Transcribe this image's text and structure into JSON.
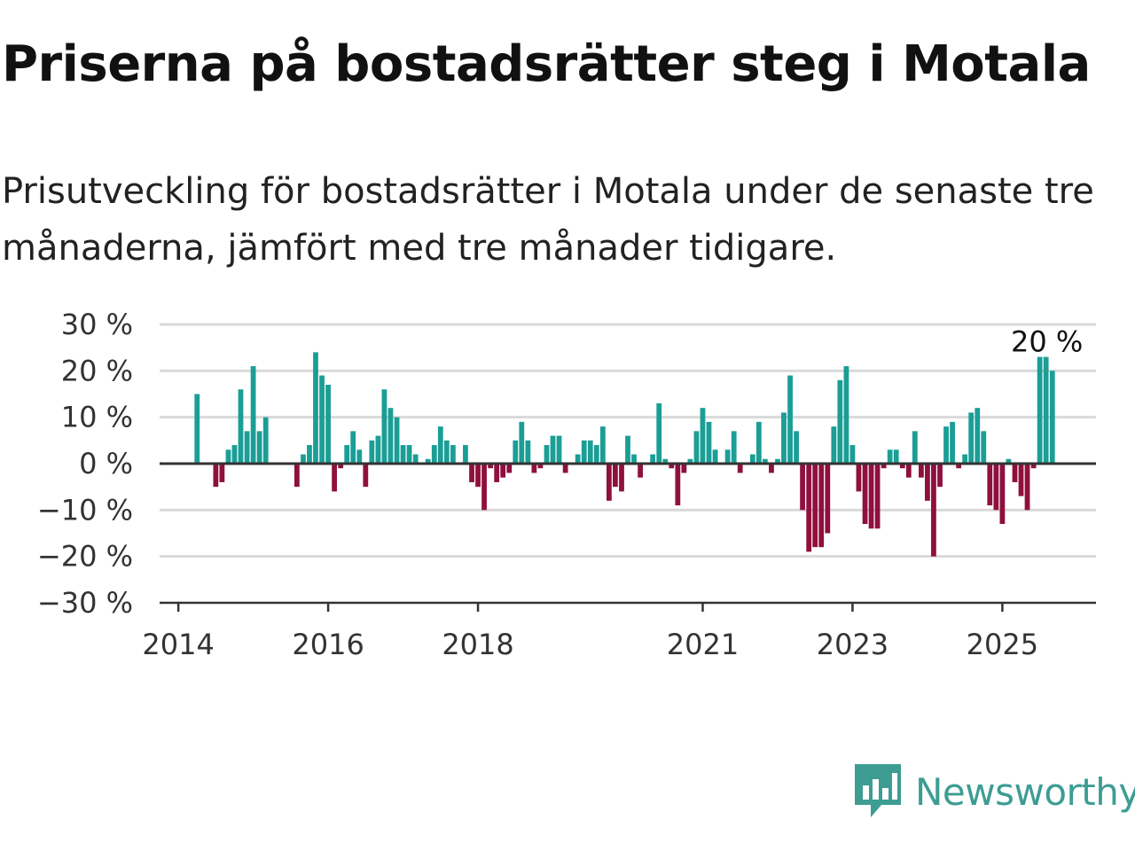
{
  "title": "Priserna på bostadsrätter steg i Motala",
  "subtitle": "Prisutveckling för bostadsrätter i Motala under de senaste tre månaderna, jämfört med tre månader tidigare.",
  "colors": {
    "positive": "#1a9e96",
    "negative": "#8f0f3d",
    "grid": "#d9d9d9",
    "zero_line": "#333333",
    "brand": "#3d9d93"
  },
  "logo": {
    "text": "Newsworthy",
    "icon": "newsworthy-chart-icon"
  },
  "chart_data": {
    "type": "bar",
    "title": "",
    "xlabel": "",
    "ylabel": "",
    "ylim": [
      -30,
      30
    ],
    "y_ticks": [
      30,
      20,
      10,
      0,
      -10,
      -20,
      -30
    ],
    "y_tick_labels": [
      "30 %",
      "20 %",
      "10 %",
      "0 %",
      "−10 %",
      "−20 %",
      "−30 %"
    ],
    "x_ticks": [
      "2014",
      "2016",
      "2018",
      "2021",
      "2023",
      "2025"
    ],
    "x_tick_positions": [
      2014.0,
      2016.0,
      2018.0,
      2021.0,
      2023.0,
      2025.0
    ],
    "x_range": [
      2013.75,
      2026.25
    ],
    "grid": true,
    "annotation": {
      "text": "20 %",
      "x": 2025.5
    },
    "points": [
      {
        "x": 2014.25,
        "y": 15
      },
      {
        "x": 2014.5,
        "y": -5
      },
      {
        "x": 2014.583,
        "y": -4
      },
      {
        "x": 2014.667,
        "y": 3
      },
      {
        "x": 2014.75,
        "y": 4
      },
      {
        "x": 2014.833,
        "y": 16
      },
      {
        "x": 2014.917,
        "y": 7
      },
      {
        "x": 2015.0,
        "y": 21
      },
      {
        "x": 2015.083,
        "y": 7
      },
      {
        "x": 2015.167,
        "y": 10
      },
      {
        "x": 2015.583,
        "y": -5
      },
      {
        "x": 2015.667,
        "y": 2
      },
      {
        "x": 2015.75,
        "y": 4
      },
      {
        "x": 2015.833,
        "y": 24
      },
      {
        "x": 2015.917,
        "y": 19
      },
      {
        "x": 2016.0,
        "y": 17
      },
      {
        "x": 2016.083,
        "y": -6
      },
      {
        "x": 2016.167,
        "y": -1
      },
      {
        "x": 2016.25,
        "y": 4
      },
      {
        "x": 2016.333,
        "y": 7
      },
      {
        "x": 2016.417,
        "y": 3
      },
      {
        "x": 2016.5,
        "y": -5
      },
      {
        "x": 2016.583,
        "y": 5
      },
      {
        "x": 2016.667,
        "y": 6
      },
      {
        "x": 2016.75,
        "y": 16
      },
      {
        "x": 2016.833,
        "y": 12
      },
      {
        "x": 2016.917,
        "y": 10
      },
      {
        "x": 2017.0,
        "y": 4
      },
      {
        "x": 2017.083,
        "y": 4
      },
      {
        "x": 2017.167,
        "y": 2
      },
      {
        "x": 2017.333,
        "y": 1
      },
      {
        "x": 2017.417,
        "y": 4
      },
      {
        "x": 2017.5,
        "y": 8
      },
      {
        "x": 2017.583,
        "y": 5
      },
      {
        "x": 2017.667,
        "y": 4
      },
      {
        "x": 2017.833,
        "y": 4
      },
      {
        "x": 2017.917,
        "y": -4
      },
      {
        "x": 2018.0,
        "y": -5
      },
      {
        "x": 2018.083,
        "y": -10
      },
      {
        "x": 2018.167,
        "y": -1
      },
      {
        "x": 2018.25,
        "y": -4
      },
      {
        "x": 2018.333,
        "y": -3
      },
      {
        "x": 2018.417,
        "y": -2
      },
      {
        "x": 2018.5,
        "y": 5
      },
      {
        "x": 2018.583,
        "y": 9
      },
      {
        "x": 2018.667,
        "y": 5
      },
      {
        "x": 2018.75,
        "y": -2
      },
      {
        "x": 2018.833,
        "y": -1
      },
      {
        "x": 2018.917,
        "y": 4
      },
      {
        "x": 2019.0,
        "y": 6
      },
      {
        "x": 2019.083,
        "y": 6
      },
      {
        "x": 2019.167,
        "y": -2
      },
      {
        "x": 2019.333,
        "y": 2
      },
      {
        "x": 2019.417,
        "y": 5
      },
      {
        "x": 2019.5,
        "y": 5
      },
      {
        "x": 2019.583,
        "y": 4
      },
      {
        "x": 2019.667,
        "y": 8
      },
      {
        "x": 2019.75,
        "y": -8
      },
      {
        "x": 2019.833,
        "y": -5
      },
      {
        "x": 2019.917,
        "y": -6
      },
      {
        "x": 2020.0,
        "y": 6
      },
      {
        "x": 2020.083,
        "y": 2
      },
      {
        "x": 2020.167,
        "y": -3
      },
      {
        "x": 2020.333,
        "y": 2
      },
      {
        "x": 2020.417,
        "y": 13
      },
      {
        "x": 2020.5,
        "y": 1
      },
      {
        "x": 2020.583,
        "y": -1
      },
      {
        "x": 2020.667,
        "y": -9
      },
      {
        "x": 2020.75,
        "y": -2
      },
      {
        "x": 2020.833,
        "y": 1
      },
      {
        "x": 2020.917,
        "y": 7
      },
      {
        "x": 2021.0,
        "y": 12
      },
      {
        "x": 2021.083,
        "y": 9
      },
      {
        "x": 2021.167,
        "y": 3
      },
      {
        "x": 2021.333,
        "y": 3
      },
      {
        "x": 2021.417,
        "y": 7
      },
      {
        "x": 2021.5,
        "y": -2
      },
      {
        "x": 2021.667,
        "y": 2
      },
      {
        "x": 2021.75,
        "y": 9
      },
      {
        "x": 2021.833,
        "y": 1
      },
      {
        "x": 2021.917,
        "y": -2
      },
      {
        "x": 2022.0,
        "y": 1
      },
      {
        "x": 2022.083,
        "y": 11
      },
      {
        "x": 2022.167,
        "y": 19
      },
      {
        "x": 2022.25,
        "y": 7
      },
      {
        "x": 2022.333,
        "y": -10
      },
      {
        "x": 2022.417,
        "y": -19
      },
      {
        "x": 2022.5,
        "y": -18
      },
      {
        "x": 2022.583,
        "y": -18
      },
      {
        "x": 2022.667,
        "y": -15
      },
      {
        "x": 2022.75,
        "y": 8
      },
      {
        "x": 2022.833,
        "y": 18
      },
      {
        "x": 2022.917,
        "y": 21
      },
      {
        "x": 2023.0,
        "y": 4
      },
      {
        "x": 2023.083,
        "y": -6
      },
      {
        "x": 2023.167,
        "y": -13
      },
      {
        "x": 2023.25,
        "y": -14
      },
      {
        "x": 2023.333,
        "y": -14
      },
      {
        "x": 2023.417,
        "y": -1
      },
      {
        "x": 2023.5,
        "y": 3
      },
      {
        "x": 2023.583,
        "y": 3
      },
      {
        "x": 2023.667,
        "y": -1
      },
      {
        "x": 2023.75,
        "y": -3
      },
      {
        "x": 2023.833,
        "y": 7
      },
      {
        "x": 2023.917,
        "y": -3
      },
      {
        "x": 2024.0,
        "y": -8
      },
      {
        "x": 2024.083,
        "y": -20
      },
      {
        "x": 2024.167,
        "y": -5
      },
      {
        "x": 2024.25,
        "y": 8
      },
      {
        "x": 2024.333,
        "y": 9
      },
      {
        "x": 2024.417,
        "y": -1
      },
      {
        "x": 2024.5,
        "y": 2
      },
      {
        "x": 2024.583,
        "y": 11
      },
      {
        "x": 2024.667,
        "y": 12
      },
      {
        "x": 2024.75,
        "y": 7
      },
      {
        "x": 2024.833,
        "y": -9
      },
      {
        "x": 2024.917,
        "y": -10
      },
      {
        "x": 2025.0,
        "y": -13
      },
      {
        "x": 2025.083,
        "y": 1
      },
      {
        "x": 2025.167,
        "y": -4
      },
      {
        "x": 2025.25,
        "y": -7
      },
      {
        "x": 2025.333,
        "y": -10
      },
      {
        "x": 2025.417,
        "y": -1
      },
      {
        "x": 2025.5,
        "y": 23
      },
      {
        "x": 2025.583,
        "y": 23
      },
      {
        "x": 2025.667,
        "y": 20
      }
    ]
  }
}
